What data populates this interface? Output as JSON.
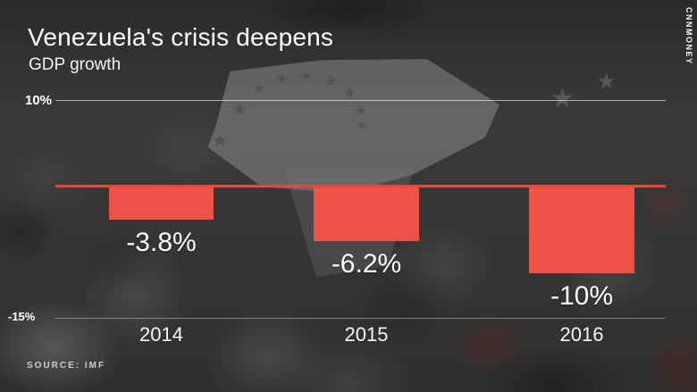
{
  "branding": {
    "watermark": "CNNMONEY"
  },
  "header": {
    "title": "Venezuela's crisis deepens",
    "subtitle": "GDP growth"
  },
  "source": {
    "text": "SOURCE: IMF"
  },
  "background": {
    "description": "black-and-white crowd photo with raised venezuelan flag, dark overlay",
    "star_glyph": "★"
  },
  "chart_data": {
    "type": "bar",
    "title": "Venezuela's crisis deepens",
    "subtitle": "GDP growth",
    "xlabel": "",
    "ylabel": "GDP growth (%)",
    "categories": [
      "2014",
      "2015",
      "2016"
    ],
    "values": [
      -3.8,
      -6.2,
      -10
    ],
    "value_labels": [
      "-3.8%",
      "-6.2%",
      "-10%"
    ],
    "ylim": [
      -15,
      10
    ],
    "yticks": [
      {
        "value": 10,
        "label": "10%"
      },
      {
        "value": -15,
        "label": "-15%"
      }
    ],
    "grid": "horizontal gridlines at 10% and -15% only",
    "legend": "none",
    "bar_color": "#ee5145",
    "zero_line_color": "#ef4438",
    "label_color": "#ffffff",
    "source_label": "SOURCE: IMF"
  }
}
